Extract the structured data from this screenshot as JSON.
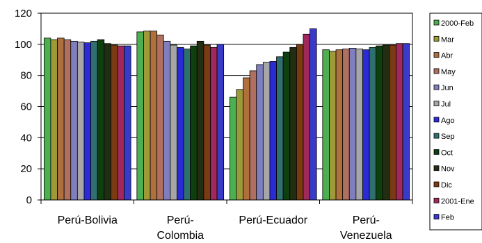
{
  "chart_data": {
    "type": "bar",
    "ylim": [
      0,
      120
    ],
    "yticks": [
      "0",
      "20",
      "40",
      "60",
      "80",
      "100",
      "120"
    ],
    "grid": true,
    "legend_position": "right",
    "categories": [
      [
        "Perú-Bolivia"
      ],
      [
        "Perú-",
        "Colombia"
      ],
      [
        "Perú-Ecuador"
      ],
      [
        "Perú-",
        "Venezuela"
      ]
    ],
    "series": [
      {
        "name": "2000-Feb",
        "color": "#4CAF50",
        "values": [
          104,
          108,
          66,
          96.5
        ]
      },
      {
        "name": "Mar",
        "color": "#9E9A3A",
        "values": [
          103,
          108.5,
          71,
          95.5
        ]
      },
      {
        "name": "Abr",
        "color": "#B0703E",
        "values": [
          104,
          108.5,
          78.5,
          96.5
        ]
      },
      {
        "name": "May",
        "color": "#B07060",
        "values": [
          103,
          106,
          83,
          97
        ]
      },
      {
        "name": "Jun",
        "color": "#7F7FBF",
        "values": [
          102,
          102,
          87,
          97.5
        ]
      },
      {
        "name": "Jul",
        "color": "#A6A6A6",
        "values": [
          101.5,
          99.5,
          88.5,
          97
        ]
      },
      {
        "name": "Ago",
        "color": "#2B2BD6",
        "values": [
          101,
          98,
          89,
          96.5
        ]
      },
      {
        "name": "Sep",
        "color": "#2F6F6F",
        "values": [
          102,
          97,
          92,
          98
        ]
      },
      {
        "name": "Oct",
        "color": "#0E3F0E",
        "values": [
          103,
          99,
          95,
          99
        ]
      },
      {
        "name": "Nov",
        "color": "#222E12",
        "values": [
          100.5,
          102,
          98,
          99.5
        ]
      },
      {
        "name": "Dic",
        "color": "#7A3A12",
        "values": [
          99.5,
          99.5,
          100,
          99.5
        ]
      },
      {
        "name": "2001-Ene",
        "color": "#A0285A",
        "values": [
          99,
          98,
          106.5,
          100.5
        ]
      },
      {
        "name": "Feb",
        "color": "#3A3AC8",
        "values": [
          99,
          100,
          110,
          100.5
        ]
      }
    ]
  }
}
